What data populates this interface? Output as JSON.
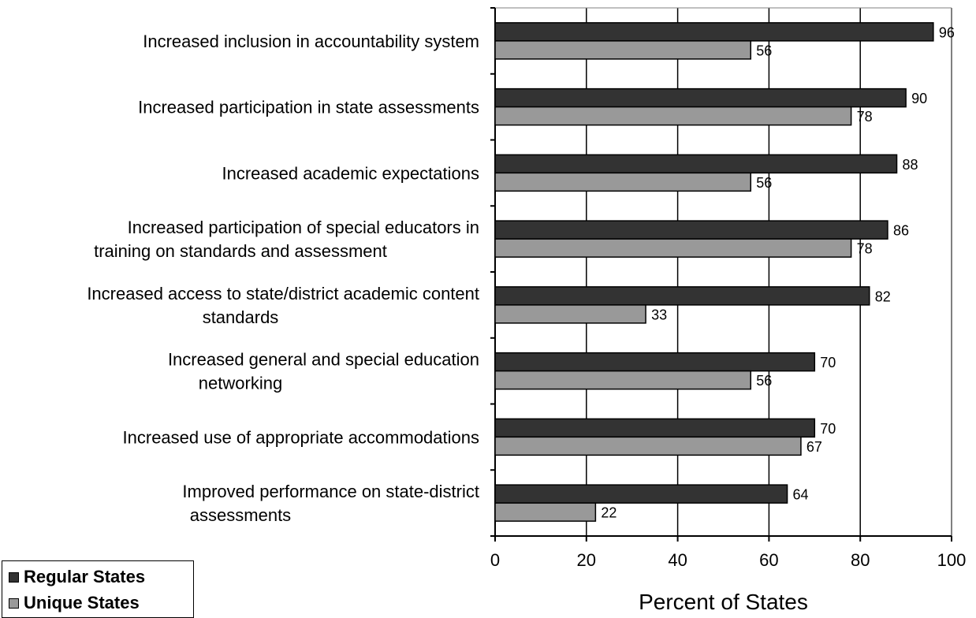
{
  "chart_data": {
    "type": "bar",
    "orientation": "horizontal",
    "categories": [
      [
        "Increased inclusion in accountability system"
      ],
      [
        "Increased participation in state assessments"
      ],
      [
        "Increased academic expectations"
      ],
      [
        "Increased participation of special educators in",
        "training on standards and assessment"
      ],
      [
        "Increased access to state/district academic content",
        "standards"
      ],
      [
        "Increased general and special education",
        "networking"
      ],
      [
        "Increased use of appropriate accommodations"
      ],
      [
        "Improved performance on state-district",
        "assessments"
      ]
    ],
    "series": [
      {
        "name": "Regular States",
        "color": "#333333",
        "values": [
          96,
          90,
          88,
          86,
          82,
          70,
          70,
          64
        ]
      },
      {
        "name": "Unique States",
        "color": "#999999",
        "values": [
          56,
          78,
          56,
          78,
          33,
          56,
          67,
          22
        ]
      }
    ],
    "xlabel": "Percent of States",
    "xlim": [
      0,
      100
    ],
    "xticks": [
      "0",
      "20",
      "40",
      "60",
      "80",
      "100"
    ],
    "grid": "vertical gridlines",
    "legend_position": "bottom-left"
  }
}
